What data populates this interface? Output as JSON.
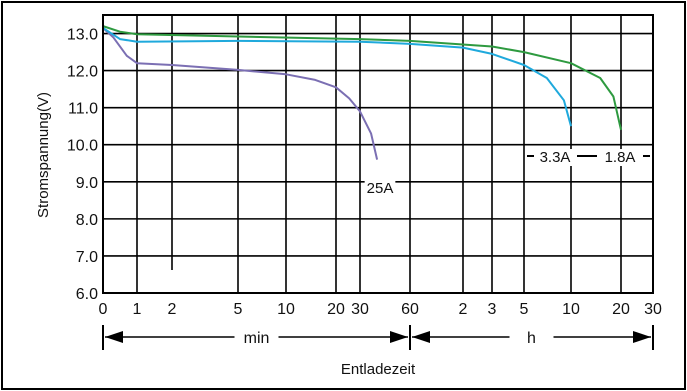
{
  "chart_data": {
    "type": "line",
    "ylabel": "Stromspannung(V)",
    "xlabel": "Entladezeit",
    "ylim": [
      6.0,
      13.5
    ],
    "y_ticks": [
      "6.0",
      "7.0",
      "8.0",
      "9.0",
      "10.0",
      "11.0",
      "12.0",
      "13.0"
    ],
    "x_ticks": [
      "0",
      "1",
      "2",
      "5",
      "10",
      "20",
      "30",
      "60",
      "2",
      "3",
      "5",
      "10",
      "20",
      "30"
    ],
    "x_units": [
      {
        "label": "min",
        "from": "0",
        "to": "60"
      },
      {
        "label": "h",
        "from": "60",
        "to": "30"
      }
    ],
    "grid": true,
    "series": [
      {
        "name": "25A",
        "color": "#7b6fb3",
        "points": [
          [
            0,
            13.15
          ],
          [
            0.3,
            12.9
          ],
          [
            0.7,
            12.4
          ],
          [
            1,
            12.2
          ],
          [
            2,
            12.15
          ],
          [
            5,
            12.02
          ],
          [
            10,
            11.9
          ],
          [
            15,
            11.75
          ],
          [
            20,
            11.55
          ],
          [
            25,
            11.25
          ],
          [
            30,
            10.9
          ],
          [
            35,
            10.3
          ],
          [
            38,
            9.6
          ]
        ]
      },
      {
        "name": "3.3A",
        "color": "#1fa9dc",
        "points": [
          [
            0,
            13.15
          ],
          [
            0.5,
            12.85
          ],
          [
            1,
            12.78
          ],
          [
            5,
            12.8
          ],
          [
            30,
            12.78
          ],
          [
            60,
            12.72
          ],
          [
            120,
            12.62
          ],
          [
            180,
            12.45
          ],
          [
            300,
            12.15
          ],
          [
            420,
            11.8
          ],
          [
            540,
            11.2
          ],
          [
            600,
            10.5
          ]
        ]
      },
      {
        "name": "1.8A",
        "color": "#2e9a40",
        "points": [
          [
            0,
            13.2
          ],
          [
            0.5,
            13.05
          ],
          [
            1,
            12.98
          ],
          [
            5,
            12.92
          ],
          [
            30,
            12.85
          ],
          [
            60,
            12.8
          ],
          [
            180,
            12.65
          ],
          [
            300,
            12.5
          ],
          [
            600,
            12.2
          ],
          [
            900,
            11.8
          ],
          [
            1080,
            11.3
          ],
          [
            1200,
            10.4
          ]
        ]
      }
    ]
  }
}
